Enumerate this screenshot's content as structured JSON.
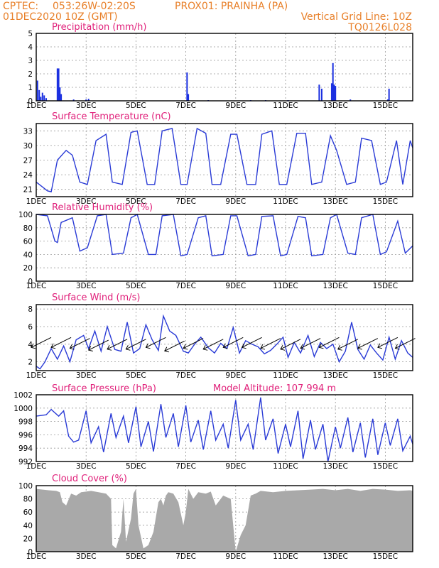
{
  "header": {
    "org": "CPTEC:",
    "coords": "053:26W-02:20S",
    "station": "PROX01: PRAINHA (PA)",
    "datetime": "01DEC2020 10Z (GMT)",
    "grid_note": "Vertical Grid Line: 10Z",
    "run_code": "TQ0126L028"
  },
  "colors": {
    "header_text": "#e8802a",
    "panel_title": "#e0207a",
    "series_line": "#2a3bd6",
    "precip_bar": "#1a2fe0",
    "cloud_fill": "#a9a9a9"
  },
  "x_axis": {
    "tick_labels": [
      "1DEC",
      "3DEC",
      "5DEC",
      "7DEC",
      "9DEC",
      "11DEC",
      "13DEC",
      "15DEC"
    ],
    "vertical_grid_line": "10Z daily",
    "range_days": [
      0,
      15.1
    ]
  },
  "chart_data": [
    {
      "type": "bar",
      "title": "Precipitation (mm/h)",
      "ylim": [
        0,
        5
      ],
      "yticks": [
        0,
        1,
        2,
        3,
        4,
        5
      ],
      "x_unit": "days since 01DEC2020 10Z",
      "points": [
        [
          0.05,
          1.5
        ],
        [
          0.12,
          0.8
        ],
        [
          0.18,
          0.3
        ],
        [
          0.25,
          0.6
        ],
        [
          0.32,
          0.4
        ],
        [
          0.4,
          0.2
        ],
        [
          0.85,
          2.4
        ],
        [
          0.9,
          2.4
        ],
        [
          0.95,
          1.0
        ],
        [
          1.0,
          0.5
        ],
        [
          1.5,
          0.1
        ],
        [
          2.0,
          0.1
        ],
        [
          2.1,
          0.15
        ],
        [
          6.05,
          2.1
        ],
        [
          6.1,
          0.5
        ],
        [
          6.9,
          0.05
        ],
        [
          8.6,
          0.05
        ],
        [
          9.2,
          0.05
        ],
        [
          10.1,
          0.05
        ],
        [
          11.35,
          1.2
        ],
        [
          11.45,
          0.9
        ],
        [
          11.85,
          1.3
        ],
        [
          11.9,
          2.8
        ],
        [
          11.95,
          1.2
        ],
        [
          12.0,
          1.1
        ],
        [
          12.6,
          0.1
        ],
        [
          14.1,
          0.1
        ],
        [
          14.15,
          0.9
        ]
      ]
    },
    {
      "type": "line",
      "title": "Surface Temperature (nC)",
      "ylim": [
        19.5,
        34.5
      ],
      "yticks": [
        21,
        24,
        27,
        30,
        33
      ],
      "x": [
        0.0,
        0.45,
        0.6,
        0.85,
        1.2,
        1.45,
        1.75,
        2.05,
        2.4,
        2.8,
        3.05,
        3.45,
        3.8,
        4.05,
        4.45,
        4.75,
        5.05,
        5.45,
        5.8,
        6.05,
        6.45,
        6.8,
        7.05,
        7.4,
        7.8,
        8.05,
        8.45,
        8.8,
        9.05,
        9.45,
        9.75,
        10.05,
        10.45,
        10.8,
        11.05,
        11.45,
        11.8,
        12.05,
        12.45,
        12.8,
        13.05,
        13.45,
        13.8,
        14.05,
        14.45,
        14.7,
        15.0,
        15.1
      ],
      "y": [
        22.5,
        20.7,
        20.5,
        27.0,
        29.0,
        28.0,
        22.5,
        22.0,
        31.0,
        32.3,
        22.5,
        22.0,
        32.7,
        33.0,
        22.0,
        22.0,
        33.0,
        33.5,
        22.0,
        22.0,
        33.5,
        32.5,
        22.0,
        22.0,
        32.3,
        32.3,
        22.0,
        22.0,
        32.3,
        33.0,
        22.0,
        22.0,
        32.5,
        32.5,
        22.0,
        22.5,
        32.0,
        29.0,
        22.0,
        22.5,
        31.5,
        31.0,
        22.0,
        22.5,
        31.0,
        22.0,
        31.0,
        29.5
      ]
    },
    {
      "type": "line",
      "title": "Relative Humidity (%)",
      "ylim": [
        0,
        100
      ],
      "yticks": [
        0,
        20,
        40,
        60,
        80,
        100
      ],
      "x": [
        0.0,
        0.45,
        0.75,
        0.85,
        1.0,
        1.45,
        1.75,
        2.05,
        2.45,
        2.8,
        3.05,
        3.5,
        3.8,
        4.05,
        4.5,
        4.8,
        5.05,
        5.5,
        5.8,
        6.05,
        6.5,
        6.8,
        7.05,
        7.5,
        7.8,
        8.05,
        8.5,
        8.8,
        9.05,
        9.5,
        9.8,
        10.05,
        10.5,
        10.8,
        11.05,
        11.5,
        11.8,
        12.05,
        12.5,
        12.8,
        13.05,
        13.5,
        13.8,
        14.05,
        14.5,
        14.8,
        15.1
      ],
      "y": [
        100,
        98,
        60,
        58,
        88,
        95,
        45,
        50,
        98,
        100,
        40,
        42,
        95,
        100,
        40,
        40,
        98,
        100,
        38,
        40,
        95,
        98,
        38,
        40,
        98,
        98,
        38,
        40,
        97,
        98,
        38,
        40,
        97,
        95,
        38,
        40,
        95,
        100,
        42,
        40,
        95,
        100,
        40,
        44,
        90,
        42,
        53
      ]
    },
    {
      "type": "line",
      "title": "Surface Wind (m/s)",
      "ylim": [
        1,
        8.5
      ],
      "yticks": [
        2,
        4,
        6,
        8
      ],
      "x": [
        0.0,
        0.15,
        0.35,
        0.6,
        0.85,
        1.1,
        1.35,
        1.6,
        1.9,
        2.1,
        2.35,
        2.6,
        2.85,
        3.15,
        3.4,
        3.65,
        3.9,
        4.15,
        4.4,
        4.65,
        4.9,
        5.1,
        5.35,
        5.6,
        5.9,
        6.1,
        6.35,
        6.6,
        6.9,
        7.15,
        7.4,
        7.65,
        7.9,
        8.15,
        8.4,
        8.65,
        8.9,
        9.15,
        9.4,
        9.65,
        9.9,
        10.1,
        10.35,
        10.6,
        10.9,
        11.15,
        11.4,
        11.65,
        11.9,
        12.15,
        12.4,
        12.65,
        12.9,
        13.15,
        13.4,
        13.65,
        13.9,
        14.15,
        14.4,
        14.65,
        14.9,
        15.1
      ],
      "y": [
        1.5,
        1.2,
        2.0,
        3.5,
        2.3,
        3.8,
        2.0,
        4.5,
        5.0,
        3.5,
        5.5,
        3.2,
        6.0,
        3.4,
        3.2,
        6.5,
        3.0,
        3.5,
        6.2,
        4.5,
        3.3,
        7.2,
        5.5,
        5.0,
        3.2,
        3.0,
        4.0,
        4.8,
        3.6,
        3.0,
        4.1,
        3.5,
        5.9,
        3.0,
        4.4,
        4.0,
        3.7,
        2.9,
        3.3,
        4.0,
        4.8,
        2.5,
        4.2,
        3.0,
        5.0,
        2.6,
        4.2,
        3.5,
        4.0,
        2.0,
        3.2,
        6.5,
        3.4,
        2.3,
        3.9,
        3.0,
        2.2,
        4.8,
        2.3,
        4.4,
        3.0,
        2.5
      ],
      "arrows_x": [
        0.2,
        1.0,
        1.75,
        2.5,
        3.25,
        4.0,
        4.8,
        5.55,
        6.3,
        7.1,
        7.9,
        8.65,
        9.4,
        10.2,
        11.0,
        11.75,
        12.5,
        13.3,
        14.1,
        14.8
      ],
      "arrows_y": [
        4.2,
        4.2,
        4.1,
        3.9,
        4.0,
        4.0,
        4.2,
        3.8,
        4.1,
        4.0,
        4.2,
        4.2,
        4.1,
        4.0,
        4.1,
        4.2,
        4.0,
        4.1,
        4.2,
        4.1
      ]
    },
    {
      "type": "line",
      "title": "Surface Pressure (hPa)",
      "annotation": "Model Altitude: 107.994  m",
      "ylim": [
        992,
        1002
      ],
      "yticks": [
        992,
        994,
        996,
        998,
        1000,
        1002
      ],
      "x": [
        0.0,
        0.4,
        0.6,
        0.9,
        1.1,
        1.3,
        1.5,
        1.7,
        2.0,
        2.2,
        2.5,
        2.7,
        3.0,
        3.2,
        3.5,
        3.7,
        4.0,
        4.2,
        4.5,
        4.7,
        5.0,
        5.2,
        5.5,
        5.7,
        6.0,
        6.2,
        6.5,
        6.7,
        7.0,
        7.2,
        7.5,
        7.7,
        8.0,
        8.2,
        8.5,
        8.7,
        9.0,
        9.2,
        9.5,
        9.7,
        10.0,
        10.2,
        10.5,
        10.7,
        11.0,
        11.2,
        11.5,
        11.7,
        12.0,
        12.2,
        12.5,
        12.7,
        13.0,
        13.2,
        13.5,
        13.7,
        14.0,
        14.2,
        14.5,
        14.7,
        15.0,
        15.1
      ],
      "y": [
        998.8,
        999.0,
        999.8,
        998.8,
        999.6,
        995.8,
        994.9,
        995.2,
        999.6,
        994.8,
        997.2,
        993.4,
        999.2,
        995.6,
        998.8,
        994.8,
        1000.2,
        994.2,
        998.0,
        993.5,
        1000.6,
        995.6,
        999.2,
        994.2,
        1000.4,
        994.9,
        998.2,
        993.8,
        999.6,
        995.2,
        997.6,
        994.0,
        1001.2,
        995.2,
        997.6,
        993.8,
        1001.6,
        995.2,
        998.4,
        993.2,
        997.6,
        994.2,
        999.6,
        992.4,
        998.2,
        993.8,
        997.6,
        992.0,
        997.2,
        994.0,
        998.6,
        993.4,
        997.8,
        992.6,
        998.4,
        993.0,
        997.8,
        994.4,
        998.4,
        993.6,
        995.8,
        994.6
      ]
    },
    {
      "type": "area",
      "title": "Cloud Cover (%)",
      "ylim": [
        0,
        100
      ],
      "yticks": [
        0,
        20,
        40,
        60,
        80,
        100
      ],
      "x": [
        0.0,
        0.5,
        0.8,
        0.95,
        1.05,
        1.2,
        1.4,
        1.6,
        1.8,
        2.0,
        2.2,
        2.5,
        2.8,
        3.0,
        3.05,
        3.2,
        3.4,
        3.5,
        3.6,
        3.8,
        3.9,
        4.0,
        4.1,
        4.3,
        4.5,
        4.7,
        4.9,
        5.0,
        5.1,
        5.2,
        5.3,
        5.5,
        5.7,
        5.9,
        6.0,
        6.1,
        6.3,
        6.5,
        6.8,
        7.0,
        7.2,
        7.5,
        7.8,
        8.0,
        8.2,
        8.4,
        8.6,
        8.8,
        9.0,
        9.5,
        10.0,
        10.5,
        11.0,
        11.5,
        12.0,
        12.5,
        13.0,
        13.5,
        14.0,
        14.5,
        15.0,
        15.1
      ],
      "y": [
        95,
        93,
        92,
        90,
        75,
        70,
        88,
        85,
        90,
        91,
        92,
        90,
        88,
        80,
        10,
        5,
        30,
        80,
        15,
        50,
        88,
        95,
        40,
        5,
        10,
        30,
        75,
        80,
        70,
        85,
        90,
        88,
        75,
        40,
        60,
        95,
        80,
        90,
        88,
        91,
        70,
        85,
        80,
        0,
        25,
        40,
        85,
        88,
        92,
        90,
        92,
        93,
        94,
        95,
        93,
        95,
        92,
        95,
        94,
        92,
        93,
        92
      ]
    }
  ]
}
